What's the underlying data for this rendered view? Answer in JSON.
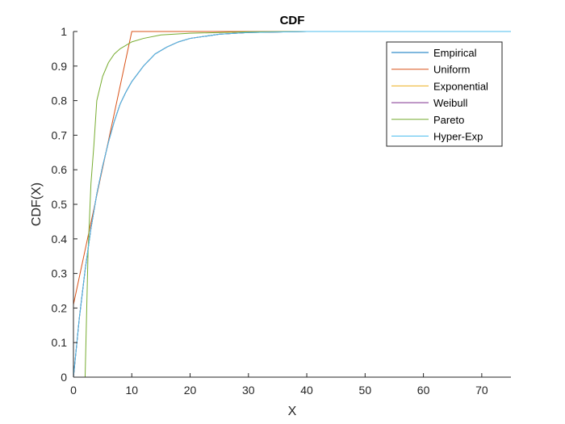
{
  "chart_data": {
    "type": "line",
    "title": "CDF",
    "xlabel": "X",
    "ylabel": "CDF(X)",
    "xlim": [
      0,
      75
    ],
    "ylim": [
      0,
      1
    ],
    "xticks": [
      0,
      10,
      20,
      30,
      40,
      50,
      60,
      70
    ],
    "yticks": [
      0,
      0.1,
      0.2,
      0.3,
      0.4,
      0.5,
      0.6,
      0.7,
      0.8,
      0.9,
      1
    ],
    "grid": false,
    "legend_position": "top-right",
    "series": [
      {
        "name": "Empirical",
        "color": "#0072BD",
        "points": [
          [
            0,
            0
          ],
          [
            1,
            0.17
          ],
          [
            2,
            0.31
          ],
          [
            3,
            0.43
          ],
          [
            4,
            0.53
          ],
          [
            5,
            0.61
          ],
          [
            6,
            0.68
          ],
          [
            7,
            0.74
          ],
          [
            8,
            0.79
          ],
          [
            9,
            0.825
          ],
          [
            10,
            0.855
          ],
          [
            12,
            0.9
          ],
          [
            14,
            0.935
          ],
          [
            16,
            0.955
          ],
          [
            18,
            0.97
          ],
          [
            20,
            0.98
          ],
          [
            25,
            0.992
          ],
          [
            30,
            0.997
          ],
          [
            40,
            1
          ],
          [
            75,
            1
          ]
        ]
      },
      {
        "name": "Uniform",
        "color": "#D95319",
        "points": [
          [
            0,
            0.21
          ],
          [
            10,
            1
          ],
          [
            75,
            1
          ]
        ]
      },
      {
        "name": "Exponential",
        "color": "#EDB120",
        "points": [
          [
            0,
            0
          ],
          [
            1,
            0.17
          ],
          [
            2,
            0.31
          ],
          [
            3,
            0.43
          ],
          [
            4,
            0.53
          ],
          [
            5,
            0.61
          ],
          [
            6,
            0.68
          ],
          [
            7,
            0.74
          ],
          [
            8,
            0.79
          ],
          [
            9,
            0.825
          ],
          [
            10,
            0.855
          ],
          [
            12,
            0.9
          ],
          [
            14,
            0.935
          ],
          [
            16,
            0.955
          ],
          [
            18,
            0.97
          ],
          [
            20,
            0.98
          ],
          [
            25,
            0.992
          ],
          [
            30,
            0.997
          ],
          [
            40,
            1
          ],
          [
            75,
            1
          ]
        ]
      },
      {
        "name": "Weibull",
        "color": "#7E2F8E",
        "points": [
          [
            0,
            0
          ],
          [
            1,
            0.17
          ],
          [
            2,
            0.31
          ],
          [
            3,
            0.43
          ],
          [
            4,
            0.53
          ],
          [
            5,
            0.61
          ],
          [
            6,
            0.68
          ],
          [
            7,
            0.74
          ],
          [
            8,
            0.79
          ],
          [
            9,
            0.825
          ],
          [
            10,
            0.855
          ],
          [
            12,
            0.9
          ],
          [
            14,
            0.935
          ],
          [
            16,
            0.955
          ],
          [
            18,
            0.97
          ],
          [
            20,
            0.98
          ],
          [
            25,
            0.992
          ],
          [
            30,
            0.997
          ],
          [
            40,
            1
          ],
          [
            75,
            1
          ]
        ]
      },
      {
        "name": "Pareto",
        "color": "#77AC30",
        "points": [
          [
            2,
            0
          ],
          [
            2.5,
            0.36
          ],
          [
            3,
            0.56
          ],
          [
            3.5,
            0.67
          ],
          [
            4,
            0.8
          ],
          [
            5,
            0.87
          ],
          [
            6,
            0.91
          ],
          [
            7,
            0.935
          ],
          [
            8,
            0.95
          ],
          [
            10,
            0.97
          ],
          [
            12,
            0.98
          ],
          [
            15,
            0.99
          ],
          [
            20,
            0.995
          ],
          [
            30,
            0.999
          ],
          [
            40,
            1
          ],
          [
            75,
            1
          ]
        ]
      },
      {
        "name": "Hyper-Exp",
        "color": "#4DBEEE",
        "points": [
          [
            0,
            0
          ],
          [
            1,
            0.17
          ],
          [
            2,
            0.31
          ],
          [
            3,
            0.43
          ],
          [
            4,
            0.53
          ],
          [
            5,
            0.61
          ],
          [
            6,
            0.68
          ],
          [
            7,
            0.74
          ],
          [
            8,
            0.79
          ],
          [
            9,
            0.825
          ],
          [
            10,
            0.855
          ],
          [
            12,
            0.9
          ],
          [
            14,
            0.935
          ],
          [
            16,
            0.955
          ],
          [
            18,
            0.97
          ],
          [
            20,
            0.98
          ],
          [
            25,
            0.992
          ],
          [
            30,
            0.997
          ],
          [
            40,
            1
          ],
          [
            75,
            1
          ]
        ]
      }
    ]
  }
}
